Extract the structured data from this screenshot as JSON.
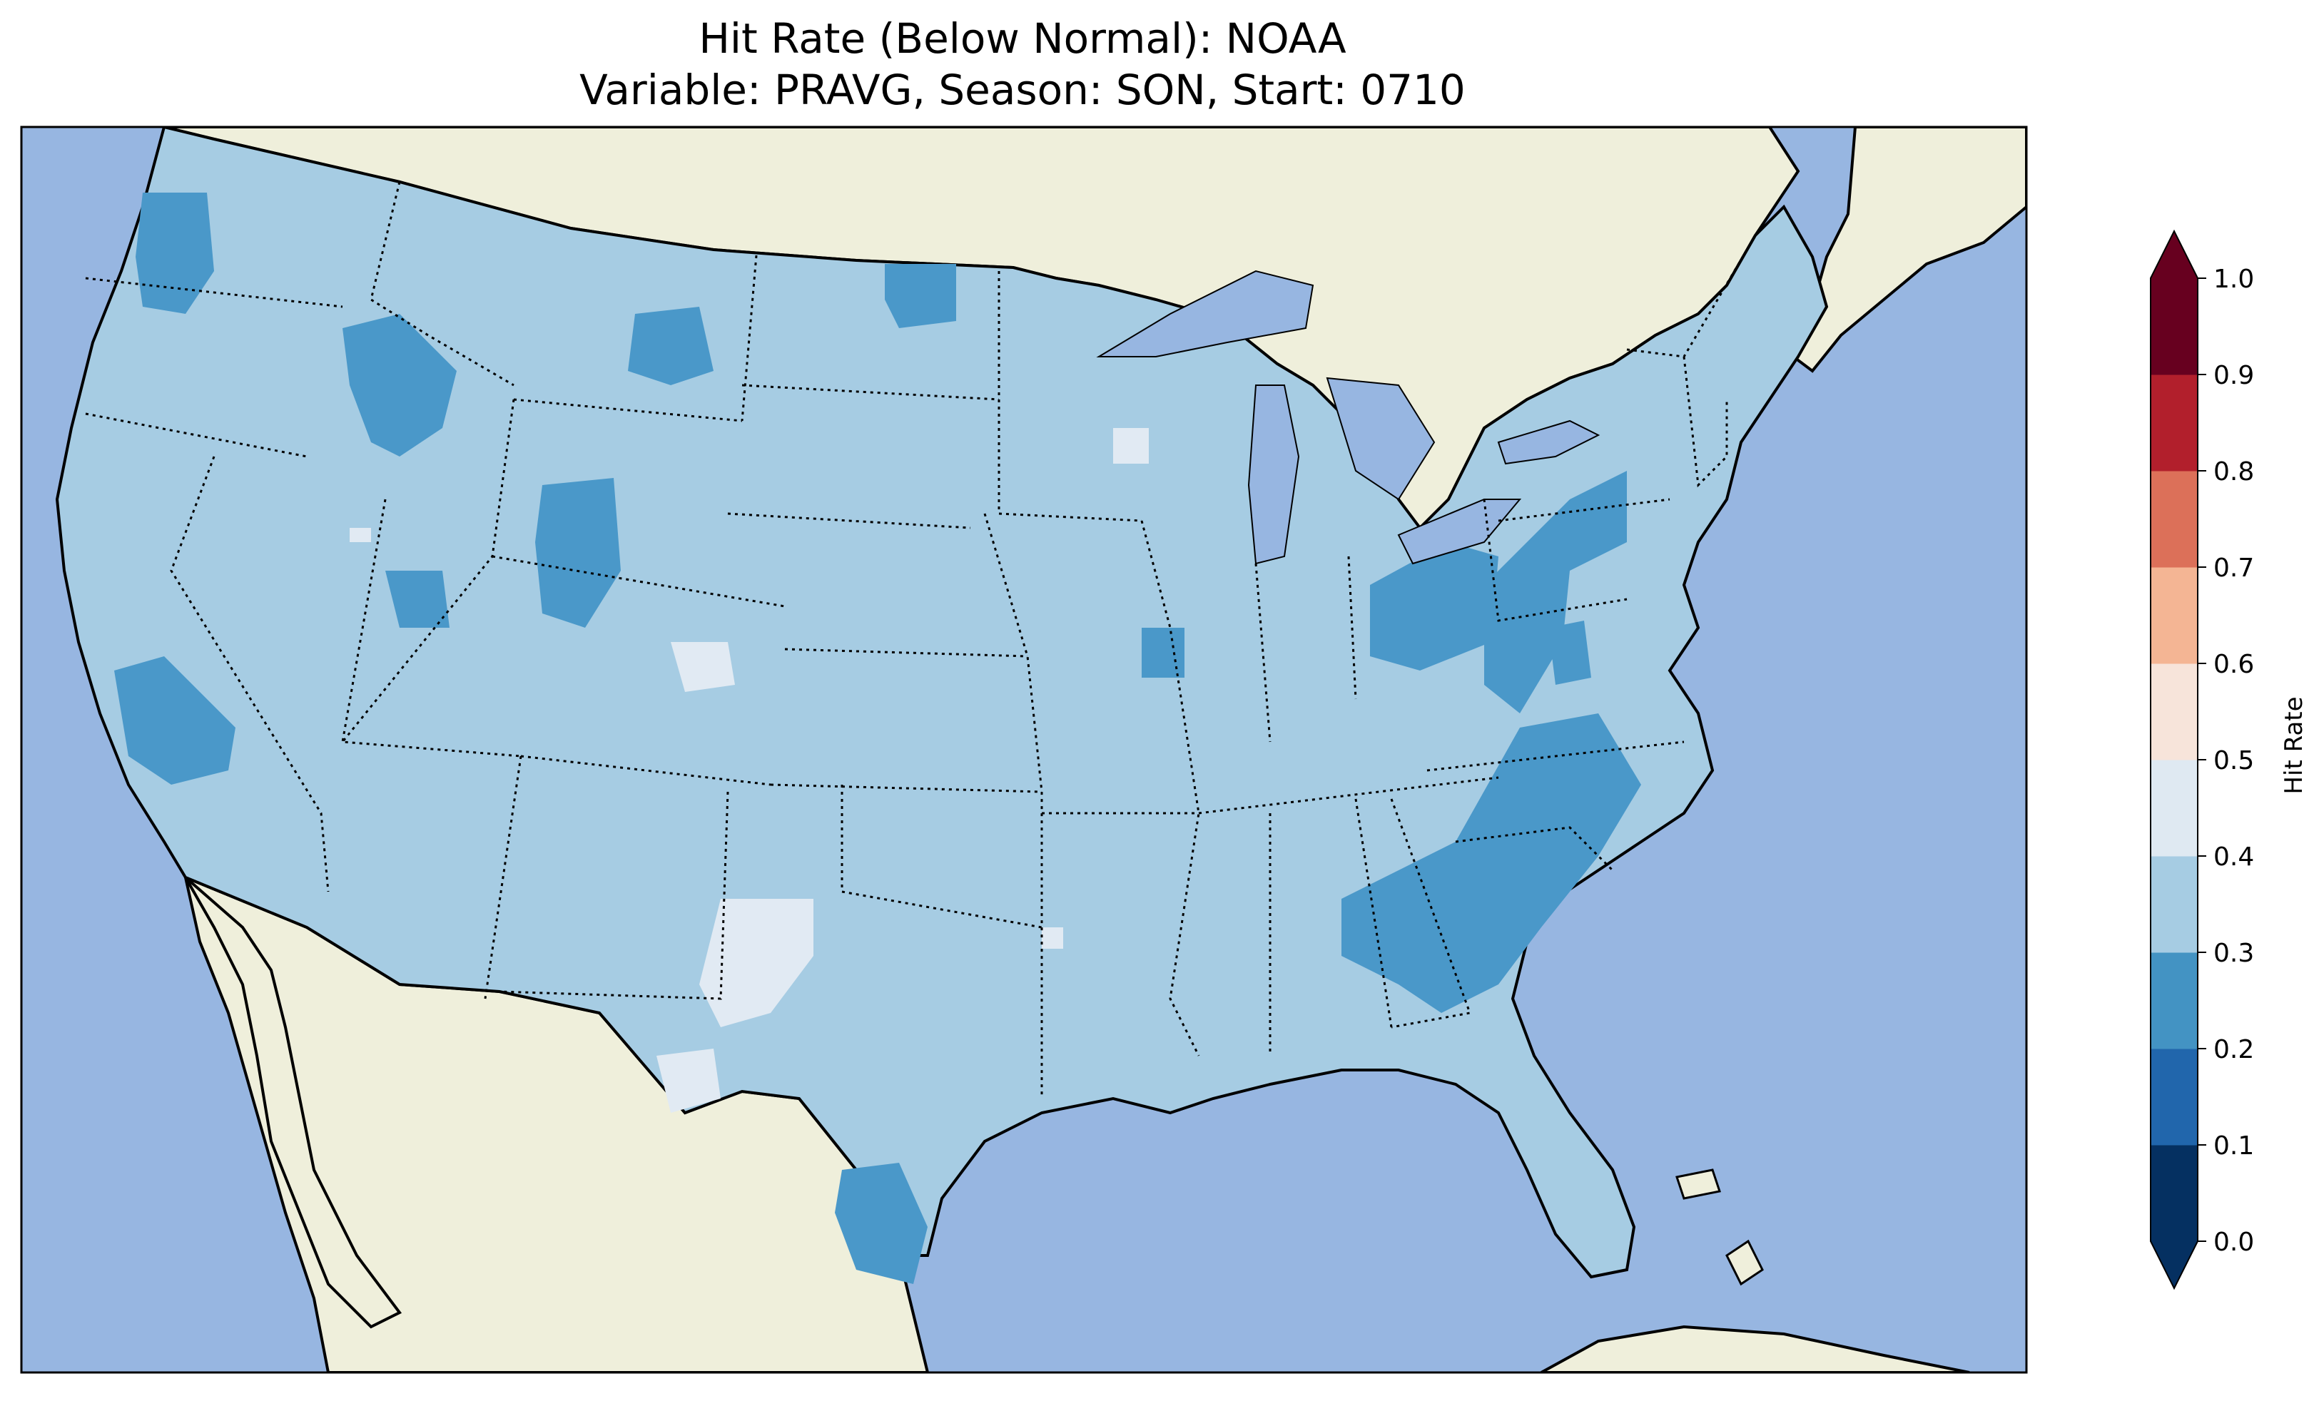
{
  "title": {
    "line1": "Hit Rate (Below Normal): NOAA",
    "line2": "Variable: PRAVG, Season: SON, Start: 0710"
  },
  "colors": {
    "ocean": "#97b6e1",
    "land": "#efefdb",
    "lakes": "#97b6e1",
    "dark_blue_patch": "#4a98c9",
    "light_patch": "#e1eaf3"
  },
  "colorbar": {
    "label": "Hit Rate",
    "extend": "both",
    "ticks": [
      "0.0",
      "0.1",
      "0.2",
      "0.3",
      "0.4",
      "0.5",
      "0.6",
      "0.7",
      "0.8",
      "0.9",
      "1.0"
    ],
    "bins": [
      {
        "from": 0.0,
        "to": 0.1,
        "color": "#053061"
      },
      {
        "from": 0.1,
        "to": 0.2,
        "color": "#2166ac"
      },
      {
        "from": 0.2,
        "to": 0.3,
        "color": "#4393c3"
      },
      {
        "from": 0.3,
        "to": 0.4,
        "color": "#a6cce3"
      },
      {
        "from": 0.4,
        "to": 0.5,
        "color": "#dfe9f2"
      },
      {
        "from": 0.5,
        "to": 0.6,
        "color": "#f7e4da"
      },
      {
        "from": 0.6,
        "to": 0.7,
        "color": "#f4b594"
      },
      {
        "from": 0.7,
        "to": 0.8,
        "color": "#dc7059"
      },
      {
        "from": 0.8,
        "to": 0.9,
        "color": "#b21f2c"
      },
      {
        "from": 0.9,
        "to": 1.0,
        "color": "#67001f"
      }
    ],
    "under_color": "#053061",
    "over_color": "#67001f"
  },
  "map_data": {
    "region": "Contiguous United States",
    "field_color": "#a6cce3",
    "dominant_range": [
      0.3,
      0.4
    ]
  }
}
